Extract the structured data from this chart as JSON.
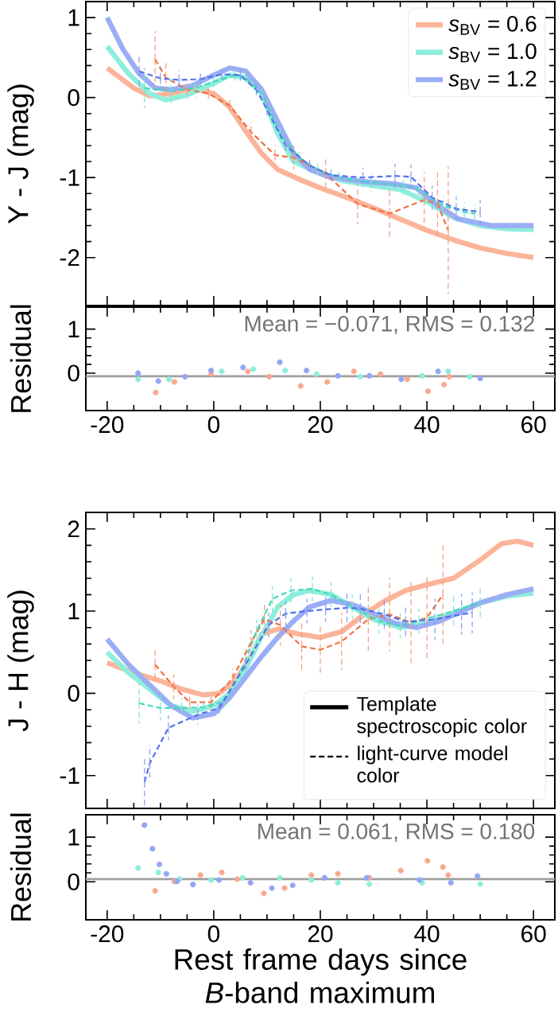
{
  "chart_data": [
    {
      "type": "line",
      "ylabel": "Y - J (mag)",
      "xlim": [
        -24,
        64
      ],
      "ylim": [
        -2.6,
        1.2
      ],
      "xticks": [
        -20,
        0,
        20,
        40,
        60
      ],
      "yticks": [
        -2,
        -1,
        0,
        1
      ],
      "tick_labels": "y",
      "legend": "top right",
      "series": [
        {
          "name": "*s*$_{BV}$ = 0.6",
          "color": "#fbb49a",
          "x": [
            -20,
            -15,
            -12,
            -8,
            -4,
            0,
            3,
            6,
            9,
            12,
            16,
            20,
            25,
            30,
            35,
            40,
            45,
            50,
            55,
            60
          ],
          "values": [
            0.37,
            0.12,
            0.02,
            0.05,
            0.12,
            0.05,
            -0.12,
            -0.42,
            -0.7,
            -0.9,
            -1.02,
            -1.13,
            -1.25,
            -1.38,
            -1.52,
            -1.66,
            -1.78,
            -1.88,
            -1.95,
            -2.0
          ]
        },
        {
          "name": "*s*$_{BV}$ = 1.0",
          "color": "#8eeedb",
          "x": [
            -20,
            -16,
            -12,
            -9,
            -5,
            0,
            3,
            6,
            9,
            12,
            15,
            20,
            25,
            30,
            35,
            40,
            45,
            50,
            55,
            60
          ],
          "values": [
            0.64,
            0.3,
            0.05,
            -0.03,
            0.03,
            0.18,
            0.28,
            0.25,
            0.05,
            -0.45,
            -0.8,
            -0.95,
            -1.05,
            -1.1,
            -1.15,
            -1.3,
            -1.5,
            -1.6,
            -1.64,
            -1.65
          ]
        },
        {
          "name": "*s*$_{BV}$ = 1.2",
          "color": "#9aaef5",
          "x": [
            -20,
            -17,
            -14,
            -11,
            -8,
            -4,
            0,
            3,
            6,
            9,
            12,
            15,
            18,
            22,
            28,
            34,
            38,
            42,
            46,
            52,
            60
          ],
          "values": [
            1.0,
            0.6,
            0.3,
            0.12,
            0.1,
            0.15,
            0.28,
            0.37,
            0.33,
            0.1,
            -0.3,
            -0.7,
            -0.9,
            -1.0,
            -1.05,
            -1.08,
            -1.13,
            -1.35,
            -1.52,
            -1.6,
            -1.6
          ]
        },
        {
          "color": "#f07040",
          "line_style": "dashed",
          "x": [
            -11,
            -9,
            -5,
            -1,
            3,
            7,
            11.5,
            15,
            21,
            27,
            33,
            39.5,
            42,
            44
          ],
          "values": [
            0.48,
            0.25,
            0.1,
            0.05,
            -0.1,
            -0.43,
            -0.72,
            -0.75,
            -0.95,
            -1.33,
            -1.45,
            -1.28,
            -1.33,
            -1.66
          ],
          "errors": [
            0.35,
            0.2,
            0.12,
            0.1,
            0.1,
            0.12,
            0.12,
            0.15,
            0.2,
            0.25,
            0.3,
            0.35,
            0.4,
            0.8
          ]
        },
        {
          "color": "#40d8b8",
          "line_style": "dashed",
          "x": [
            -13,
            -8,
            -3.5,
            0,
            4,
            6,
            9,
            12.5,
            16,
            19.5,
            23.5,
            29.5,
            35.5,
            38.5,
            43,
            47,
            49
          ],
          "values": [
            0.12,
            0.08,
            0.12,
            0.2,
            0.28,
            0.25,
            0.05,
            -0.45,
            -0.75,
            -0.9,
            -1.0,
            -1.06,
            -1.1,
            -1.15,
            -1.35,
            -1.43,
            -1.45
          ],
          "errors": [
            0.25,
            0.15,
            0.12,
            0.1,
            0.1,
            0.1,
            0.1,
            0.1,
            0.1,
            0.1,
            0.1,
            0.12,
            0.12,
            0.12,
            0.12,
            0.12,
            0.12
          ]
        },
        {
          "color": "#5070f0",
          "line_style": "dashed",
          "x": [
            -14,
            -10,
            -6.5,
            -2.5,
            1.5,
            5,
            8,
            10,
            13.5,
            18,
            22,
            28,
            34,
            37,
            41,
            45.5,
            50
          ],
          "values": [
            0.33,
            0.24,
            0.22,
            0.23,
            0.29,
            0.28,
            0.1,
            -0.15,
            -0.6,
            -0.85,
            -0.97,
            -1.0,
            -0.98,
            -0.99,
            -1.25,
            -1.39,
            -1.43
          ],
          "errors": [
            0.2,
            0.15,
            0.12,
            0.1,
            0.1,
            0.1,
            0.1,
            0.1,
            0.1,
            0.1,
            0.1,
            0.12,
            0.15,
            0.15,
            0.15,
            0.15,
            0.15
          ]
        }
      ]
    },
    {
      "type": "scatter",
      "ylabel": "Residual",
      "xlim": [
        -24,
        64
      ],
      "ylim": [
        -0.85,
        1.5
      ],
      "xticks": [
        -20,
        0,
        20,
        40,
        60
      ],
      "yticks": [
        0,
        1
      ],
      "marker": "circle",
      "ref_lines": [
        {
          "axis": "y",
          "value": -0.071,
          "color": "#a0a0a0"
        }
      ],
      "annotations": [
        "Mean = −0.071, RMS = 0.132"
      ],
      "series": [
        {
          "color": "#f9a98e",
          "x": [
            -10.9,
            -7.4,
            -0.5,
            6.4,
            10.4,
            16.3,
            21.3,
            26.3,
            31.3,
            36.3,
            40.2,
            43.2,
            44.2
          ],
          "values": [
            -0.44,
            -0.2,
            -0.02,
            0.04,
            -0.08,
            -0.29,
            -0.2,
            0.04,
            -0.02,
            -0.14,
            -0.41,
            -0.26,
            -0.08
          ]
        },
        {
          "color": "#8deedb",
          "x": [
            -14.2,
            -8.4,
            1.5,
            7.4,
            13.4,
            19.3,
            27.5,
            39.1,
            44,
            48
          ],
          "values": [
            -0.14,
            -0.14,
            0.04,
            0.09,
            0.06,
            -0.02,
            -0.08,
            -0.06,
            0.04,
            -0.08
          ]
        },
        {
          "color": "#93a6f4",
          "x": [
            -14.2,
            -10.4,
            -5.4,
            -0.5,
            5.5,
            12.4,
            17.4,
            23.3,
            29.2,
            35.2,
            42.1,
            50
          ],
          "values": [
            0,
            -0.18,
            -0.08,
            0.06,
            0.13,
            0.25,
            0.06,
            -0.06,
            -0.06,
            -0.14,
            0.04,
            -0.12
          ]
        }
      ]
    },
    {
      "type": "line",
      "ylabel": "J - H (mag)",
      "xlim": [
        -24,
        64
      ],
      "ylim": [
        -1.4,
        2.2
      ],
      "xticks": [
        -20,
        0,
        20,
        40,
        60
      ],
      "yticks": [
        -1,
        0,
        1,
        2
      ],
      "tick_labels": "y",
      "legend": "bottom right",
      "series": [
        {
          "color": "#fbb49a",
          "x": [
            -20,
            -15,
            -10,
            -6,
            -2,
            1,
            4,
            7,
            9,
            12,
            16,
            20,
            24,
            28,
            32,
            36,
            40,
            45,
            50,
            54,
            57,
            60
          ],
          "values": [
            0.37,
            0.25,
            0.15,
            0.05,
            -0.02,
            0.0,
            0.15,
            0.45,
            0.72,
            0.78,
            0.72,
            0.68,
            0.75,
            0.95,
            1.12,
            1.25,
            1.32,
            1.4,
            1.62,
            1.82,
            1.85,
            1.8
          ]
        },
        {
          "color": "#8eeedb",
          "x": [
            -20,
            -16,
            -12,
            -8,
            -4,
            0,
            3,
            6,
            9,
            12,
            15,
            18,
            22,
            26,
            30,
            35,
            40,
            45,
            50,
            55,
            60
          ],
          "values": [
            0.5,
            0.25,
            0.05,
            -0.15,
            -0.22,
            -0.15,
            0.0,
            0.3,
            0.7,
            1.05,
            1.2,
            1.25,
            1.2,
            1.05,
            0.9,
            0.8,
            0.85,
            0.98,
            1.1,
            1.18,
            1.22
          ]
        },
        {
          "color": "#9aaef5",
          "x": [
            -20,
            -16,
            -12,
            -8,
            -4,
            0,
            3,
            6,
            9,
            12,
            15,
            18,
            22,
            26,
            30,
            34,
            38,
            42,
            46,
            50,
            55,
            60
          ],
          "values": [
            0.66,
            0.35,
            0.1,
            -0.15,
            -0.3,
            -0.25,
            -0.05,
            0.2,
            0.45,
            0.68,
            0.88,
            1.05,
            1.13,
            1.08,
            0.97,
            0.85,
            0.8,
            0.87,
            0.98,
            1.1,
            1.2,
            1.27
          ]
        },
        {
          "color": "#f07040",
          "line_style": "dashed",
          "x": [
            -11,
            -7.5,
            -4.5,
            -0.5,
            3.5,
            7,
            9.5,
            12.5,
            16.5,
            20,
            24,
            29,
            33,
            37,
            40,
            43
          ],
          "values": [
            0.35,
            0.08,
            -0.11,
            -0.11,
            0.18,
            0.62,
            0.9,
            0.83,
            0.57,
            0.53,
            0.63,
            0.9,
            0.96,
            0.86,
            0.92,
            1.2
          ],
          "errors": [
            0.2,
            0.15,
            0.1,
            0.1,
            0.12,
            0.15,
            0.2,
            0.25,
            0.3,
            0.3,
            0.35,
            0.4,
            0.45,
            0.5,
            0.5,
            0.6
          ]
        },
        {
          "color": "#40d8b8",
          "line_style": "dashed",
          "x": [
            -14,
            -10,
            -6,
            -2,
            2,
            5,
            8,
            11,
            14.5,
            18.5,
            22,
            26,
            31,
            35,
            38.5,
            45,
            50
          ],
          "values": [
            -0.12,
            -0.18,
            -0.18,
            -0.17,
            -0.1,
            0.25,
            0.75,
            1.15,
            1.25,
            1.27,
            1.2,
            1.05,
            0.88,
            0.82,
            0.88,
            1.0,
            1.1
          ],
          "errors": [
            0.25,
            0.15,
            0.12,
            0.1,
            0.1,
            0.12,
            0.15,
            0.15,
            0.15,
            0.15,
            0.15,
            0.15,
            0.15,
            0.15,
            0.15,
            0.2,
            0.2
          ]
        },
        {
          "color": "#5070f0",
          "line_style": "dashed",
          "x": [
            -13,
            -12,
            -8.5,
            -3,
            1,
            6,
            10.3,
            13.5,
            17.5,
            21,
            25,
            27.5,
            32,
            36,
            41.5,
            46.5,
            48.5
          ],
          "values": [
            -1.08,
            -0.85,
            -0.42,
            -0.26,
            -0.18,
            0.35,
            0.83,
            0.97,
            1.0,
            1.02,
            1.04,
            1.03,
            0.96,
            0.87,
            0.9,
            0.96,
            0.98
          ],
          "errors": [
            0.3,
            0.22,
            0.15,
            0.12,
            0.1,
            0.12,
            0.15,
            0.15,
            0.15,
            0.15,
            0.2,
            0.2,
            0.2,
            0.2,
            0.25,
            0.25,
            0.25
          ]
        },
        {
          "name": "Template spectroscopic color",
          "color": "#000000"
        },
        {
          "name": "light-curve model color",
          "color": "#000000",
          "line_style": "dashed"
        }
      ]
    },
    {
      "type": "scatter",
      "ylabel": "Residual",
      "xlabel": "Rest frame days since *B*-band maximum",
      "xlim": [
        -24,
        64
      ],
      "ylim": [
        -0.85,
        1.5
      ],
      "xticks": [
        -20,
        0,
        20,
        40,
        60
      ],
      "yticks": [
        0,
        1
      ],
      "marker": "circle",
      "ref_lines": [
        {
          "axis": "y",
          "value": 0.061,
          "color": "#a0a0a0"
        }
      ],
      "annotations": [
        "Mean = 0.061, RMS = 0.180"
      ],
      "series": [
        {
          "color": "#f9a98e",
          "x": [
            -11,
            -7.4,
            -2.5,
            1.5,
            4.4,
            9.4,
            13.3,
            18.3,
            23.3,
            29.2,
            35.1,
            40.1,
            43,
            44
          ],
          "values": [
            -0.2,
            0.01,
            0.15,
            0.21,
            0.06,
            -0.26,
            -0.14,
            0.15,
            0.18,
            0.09,
            0.25,
            0.47,
            0.33,
            0.15
          ]
        },
        {
          "color": "#8deedb",
          "x": [
            -14.2,
            -10.4,
            -6.4,
            -0.5,
            5.4,
            12.4,
            18.3,
            23.3,
            29.2,
            39.1,
            50
          ],
          "values": [
            0.31,
            0.21,
            0.06,
            0.04,
            0.09,
            0.09,
            0.04,
            -0.02,
            -0.05,
            -0.02,
            -0.05
          ]
        },
        {
          "color": "#93a6f4",
          "x": [
            -13,
            -11.5,
            -10.2,
            -8.9,
            -6.9,
            -3.9,
            1,
            6.9,
            10.9,
            14.8,
            20.8,
            28.7,
            38.6,
            44.5,
            49.5
          ],
          "values": [
            1.27,
            0.74,
            0.39,
            0.18,
            0.01,
            -0.06,
            0.04,
            -0.02,
            -0.14,
            -0.08,
            0.09,
            0.09,
            0.04,
            -0.02,
            0.13
          ]
        }
      ]
    }
  ]
}
